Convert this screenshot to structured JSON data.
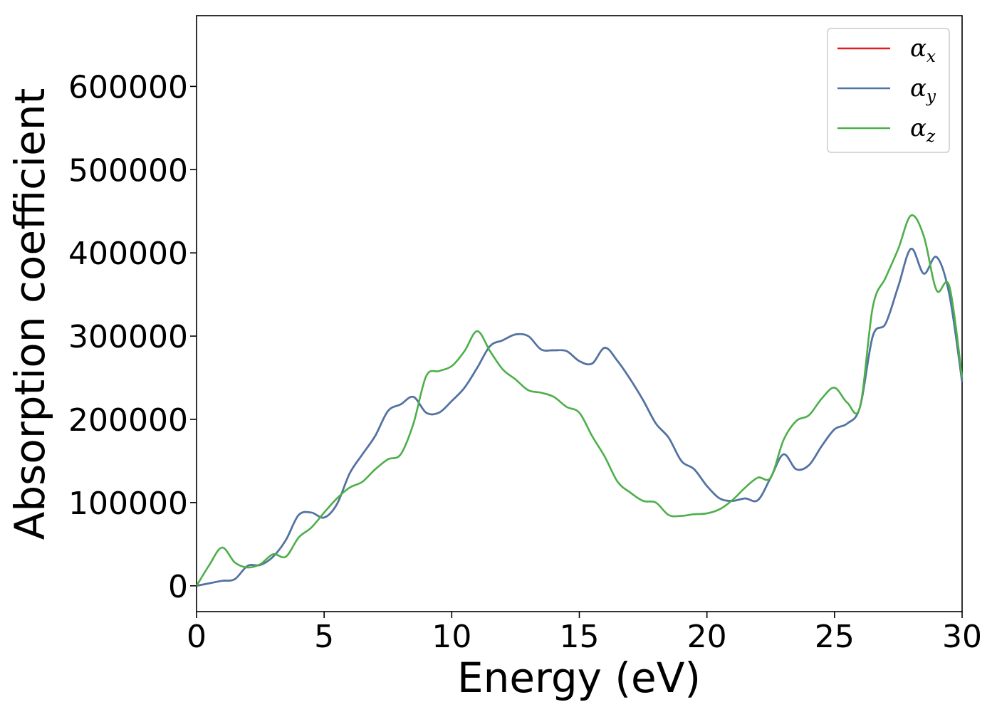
{
  "chart_data": {
    "type": "line",
    "title": "",
    "xlabel": "Energy (eV)",
    "ylabel": "Absorption coefficient",
    "xlim": [
      0,
      30
    ],
    "ylim": [
      -31000,
      685000
    ],
    "xticks": [
      0,
      5,
      10,
      15,
      20,
      25,
      30
    ],
    "yticks": [
      0,
      100000,
      200000,
      300000,
      400000,
      500000,
      600000
    ],
    "grid": false,
    "legend_position": "top-right",
    "series": [
      {
        "name": "α",
        "subscript": "x",
        "color": "#e41a1c",
        "x": [
          0,
          0.5,
          1,
          1.5,
          2,
          2.5,
          3,
          3.5,
          4,
          4.5,
          5,
          5.5,
          6,
          6.5,
          7,
          7.5,
          8,
          8.5,
          9,
          9.5,
          10,
          10.5,
          11,
          11.5,
          12,
          12.5,
          13,
          13.5,
          14,
          14.5,
          15,
          15.5,
          16,
          16.5,
          17,
          17.5,
          18,
          18.5,
          19,
          19.5,
          20,
          20.5,
          21,
          21.5,
          22,
          22.5,
          23,
          23.5,
          24,
          24.5,
          25,
          25.5,
          26,
          26.5,
          27,
          27.5,
          28,
          28.5,
          29,
          29.5,
          30
        ],
        "y": [
          0,
          3000,
          6000,
          8000,
          24000,
          25000,
          35000,
          55000,
          85000,
          88000,
          82000,
          98000,
          135000,
          158000,
          180000,
          210000,
          218000,
          227000,
          208000,
          208000,
          222000,
          238000,
          262000,
          288000,
          295000,
          302000,
          300000,
          284000,
          283000,
          282000,
          270000,
          267000,
          286000,
          270000,
          248000,
          223000,
          195000,
          178000,
          150000,
          140000,
          120000,
          105000,
          102000,
          105000,
          103000,
          130000,
          158000,
          140000,
          145000,
          168000,
          188000,
          195000,
          215000,
          300000,
          315000,
          360000,
          405000,
          375000,
          395000,
          350000,
          245000
        ]
      },
      {
        "name": "α",
        "subscript": "y",
        "color": "#4a77a8",
        "x": [
          0,
          0.5,
          1,
          1.5,
          2,
          2.5,
          3,
          3.5,
          4,
          4.5,
          5,
          5.5,
          6,
          6.5,
          7,
          7.5,
          8,
          8.5,
          9,
          9.5,
          10,
          10.5,
          11,
          11.5,
          12,
          12.5,
          13,
          13.5,
          14,
          14.5,
          15,
          15.5,
          16,
          16.5,
          17,
          17.5,
          18,
          18.5,
          19,
          19.5,
          20,
          20.5,
          21,
          21.5,
          22,
          22.5,
          23,
          23.5,
          24,
          24.5,
          25,
          25.5,
          26,
          26.5,
          27,
          27.5,
          28,
          28.5,
          29,
          29.5,
          30
        ],
        "y": [
          0,
          3000,
          6000,
          8000,
          24000,
          25000,
          35000,
          55000,
          85000,
          88000,
          82000,
          98000,
          135000,
          158000,
          180000,
          210000,
          218000,
          227000,
          208000,
          208000,
          222000,
          238000,
          262000,
          288000,
          295000,
          302000,
          300000,
          284000,
          283000,
          282000,
          270000,
          267000,
          286000,
          270000,
          248000,
          223000,
          195000,
          178000,
          150000,
          140000,
          120000,
          105000,
          102000,
          105000,
          103000,
          130000,
          158000,
          140000,
          145000,
          168000,
          188000,
          195000,
          215000,
          300000,
          315000,
          360000,
          405000,
          375000,
          395000,
          350000,
          245000
        ]
      },
      {
        "name": "α",
        "subscript": "z",
        "color": "#4daf4a",
        "x": [
          0,
          0.5,
          1,
          1.5,
          2,
          2.5,
          3,
          3.5,
          4,
          4.5,
          5,
          5.5,
          6,
          6.5,
          7,
          7.5,
          8,
          8.5,
          9,
          9.5,
          10,
          10.5,
          11,
          11.5,
          12,
          12.5,
          13,
          13.5,
          14,
          14.5,
          15,
          15.5,
          16,
          16.5,
          17,
          17.5,
          18,
          18.5,
          19,
          19.5,
          20,
          20.5,
          21,
          21.5,
          22,
          22.5,
          23,
          23.5,
          24,
          24.5,
          25,
          25.5,
          26,
          26.5,
          27,
          27.5,
          28,
          28.5,
          29,
          29.5,
          30
        ],
        "y": [
          0,
          25000,
          46000,
          28000,
          22000,
          26000,
          38000,
          35000,
          58000,
          70000,
          88000,
          105000,
          118000,
          125000,
          140000,
          152000,
          158000,
          195000,
          252000,
          258000,
          264000,
          282000,
          306000,
          282000,
          260000,
          248000,
          235000,
          232000,
          227000,
          215000,
          208000,
          180000,
          155000,
          125000,
          112000,
          102000,
          100000,
          85000,
          84000,
          86000,
          87000,
          92000,
          103000,
          118000,
          130000,
          130000,
          175000,
          198000,
          205000,
          225000,
          238000,
          220000,
          215000,
          335000,
          370000,
          405000,
          445000,
          420000,
          355000,
          360000,
          250000
        ]
      }
    ]
  }
}
